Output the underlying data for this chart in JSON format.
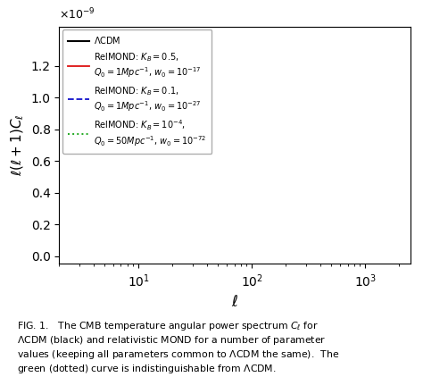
{
  "title": "",
  "xlabel": "$\\ell$",
  "ylabel": "$\\ell(\\ell+1)C_\\ell$",
  "ylim": [
    -0.05,
    1.45
  ],
  "yticks": [
    0.0,
    0.2,
    0.4,
    0.6,
    0.8,
    1.0,
    1.2
  ],
  "xticks": [
    10,
    100,
    1000
  ],
  "xlim": [
    2,
    2500
  ],
  "lcdm_color": "#000000",
  "rm1_color": "#dd1111",
  "rm2_color": "#1111cc",
  "rm3_color": "#22aa22",
  "background_color": "#ffffff",
  "legend_fontsize": 7,
  "caption_fontsize": 7.8
}
